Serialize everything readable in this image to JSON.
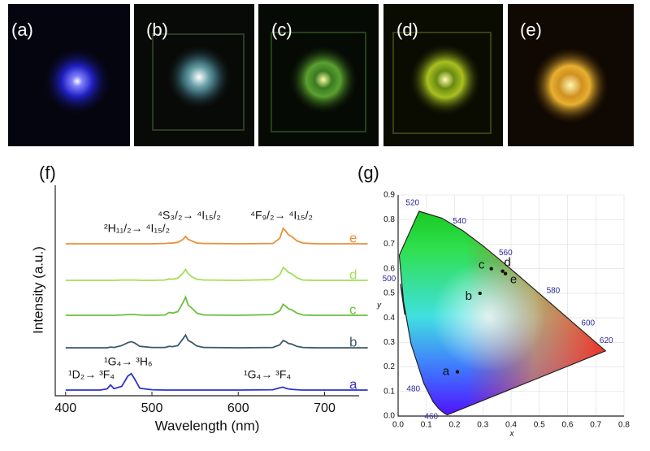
{
  "photos": {
    "labels": [
      "(a)",
      "(b)",
      "(c)",
      "(d)",
      "(e)"
    ]
  },
  "spectrum": {
    "panel_label": "(f)",
    "type": "line",
    "x_label": "Wavelength (nm)",
    "y_label": "Intensity (a.u.)",
    "xlim": [
      388,
      740
    ],
    "xticks": [
      400,
      500,
      600,
      700
    ],
    "ylim": [
      0,
      1
    ],
    "x": [
      400,
      440,
      448,
      452,
      456,
      465,
      472,
      476,
      480,
      486,
      500,
      515,
      520,
      524,
      530,
      536,
      539,
      542,
      546,
      552,
      560,
      600,
      640,
      648,
      652,
      655,
      658,
      662,
      668,
      675,
      690,
      750
    ],
    "series": [
      {
        "name": "a",
        "color": "#3232c8",
        "values": [
          0,
          0,
          0.03,
          0.14,
          0.04,
          0.1,
          0.38,
          0.45,
          0.3,
          0.05,
          0.01,
          0,
          0,
          0,
          0,
          0,
          0,
          0,
          0,
          0,
          0,
          0,
          0.01,
          0.06,
          0.08,
          0.05,
          0.03,
          0.02,
          0.01,
          0,
          0,
          0
        ]
      },
      {
        "name": "b",
        "color": "#3d5a6c",
        "values": [
          0,
          0,
          0,
          0.02,
          0.01,
          0.06,
          0.14,
          0.17,
          0.13,
          0.04,
          0.01,
          0.01,
          0.04,
          0.03,
          0.06,
          0.25,
          0.35,
          0.2,
          0.15,
          0.05,
          0.01,
          0,
          0.01,
          0.08,
          0.2,
          0.17,
          0.12,
          0.1,
          0.04,
          0.01,
          0,
          0
        ]
      },
      {
        "name": "c",
        "color": "#6cbf3a",
        "values": [
          0,
          0,
          0,
          0,
          0,
          0.01,
          0.02,
          0.02,
          0.02,
          0.01,
          0,
          0.01,
          0.08,
          0.06,
          0.1,
          0.35,
          0.5,
          0.28,
          0.2,
          0.06,
          0.01,
          0,
          0.02,
          0.12,
          0.3,
          0.25,
          0.18,
          0.15,
          0.06,
          0.01,
          0,
          0
        ]
      },
      {
        "name": "d",
        "color": "#a2e05a",
        "values": [
          0,
          0,
          0,
          0,
          0,
          0.01,
          0.01,
          0.01,
          0.01,
          0,
          0,
          0.01,
          0.04,
          0.03,
          0.06,
          0.2,
          0.3,
          0.18,
          0.1,
          0.03,
          0.01,
          0,
          0.02,
          0.15,
          0.35,
          0.3,
          0.22,
          0.18,
          0.07,
          0.01,
          0,
          0
        ]
      },
      {
        "name": "e",
        "color": "#e8903a",
        "values": [
          0,
          0,
          0,
          0,
          0,
          0,
          0,
          0,
          0,
          0,
          0,
          0.01,
          0.02,
          0.02,
          0.04,
          0.12,
          0.2,
          0.12,
          0.08,
          0.02,
          0.01,
          0,
          0.01,
          0.15,
          0.42,
          0.35,
          0.25,
          0.2,
          0.08,
          0.02,
          0,
          0
        ]
      }
    ],
    "annotations": [
      "²H₁₁/₂→ ⁴I₁₅/₂",
      "⁴S₃/₂→ ⁴I₁₅/₂",
      "⁴F₉/₂→ ⁴I₁₅/₂",
      "¹D₂→ ³F₄",
      "¹G₄→ ³H₆",
      "¹G₄→ ³F₄"
    ]
  },
  "cie": {
    "panel_label": "(g)",
    "type": "scatter",
    "x_label": "x",
    "y_label": "y",
    "xlim": [
      0,
      0.8
    ],
    "ylim": [
      0,
      0.9
    ],
    "xticks": [
      {
        "value": 0,
        "label": "0.0"
      },
      {
        "value": 0.1,
        "label": "0.1"
      },
      {
        "value": 0.2,
        "label": "0.2"
      },
      {
        "value": 0.3,
        "label": "0.3"
      },
      {
        "value": 0.4,
        "label": "0.4"
      },
      {
        "value": 0.5,
        "label": "0.5"
      },
      {
        "value": 0.6,
        "label": "0.6"
      },
      {
        "value": 0.7,
        "label": "0.7"
      },
      {
        "value": 0.8,
        "label": "0.8"
      }
    ],
    "yticks": [
      {
        "value": 0,
        "label": "0.0"
      },
      {
        "value": 0.1,
        "label": "0.1"
      },
      {
        "value": 0.2,
        "label": "0.2"
      },
      {
        "value": 0.3,
        "label": "0.3"
      },
      {
        "value": 0.4,
        "label": "0.4"
      },
      {
        "value": 0.5,
        "label": "0.5"
      },
      {
        "value": 0.6,
        "label": "0.6"
      },
      {
        "value": 0.7,
        "label": "0.7"
      },
      {
        "value": 0.8,
        "label": "0.8"
      },
      {
        "value": 0.9,
        "label": "0.9"
      }
    ],
    "locus": {
      "wavelengths": [
        null,
        null,
        null,
        460,
        null,
        480,
        null,
        500,
        null,
        null,
        520,
        null,
        540,
        null,
        560,
        null,
        580,
        null,
        600,
        null,
        620,
        null
      ],
      "x": [
        0.1741,
        0.1644,
        0.1566,
        0.144,
        0.1241,
        0.0913,
        0.0454,
        0.0082,
        0.0235,
        0.0039,
        0.0743,
        0.1547,
        0.2296,
        0.3016,
        0.3731,
        0.4441,
        0.5125,
        0.5752,
        0.627,
        0.6658,
        0.6915,
        0.7347
      ],
      "y": [
        0.005,
        0.0109,
        0.0177,
        0.0297,
        0.0578,
        0.1327,
        0.295,
        0.5384,
        0.4127,
        0.6548,
        0.8338,
        0.8059,
        0.7543,
        0.6923,
        0.6245,
        0.5547,
        0.4866,
        0.4242,
        0.3725,
        0.334,
        0.3083,
        0.2653
      ]
    },
    "points": {
      "names": [
        "a",
        "b",
        "c",
        "d",
        "e"
      ],
      "x": [
        0.21,
        0.29,
        0.33,
        0.37,
        0.38
      ],
      "y": [
        0.18,
        0.5,
        0.6,
        0.59,
        0.58
      ]
    }
  }
}
